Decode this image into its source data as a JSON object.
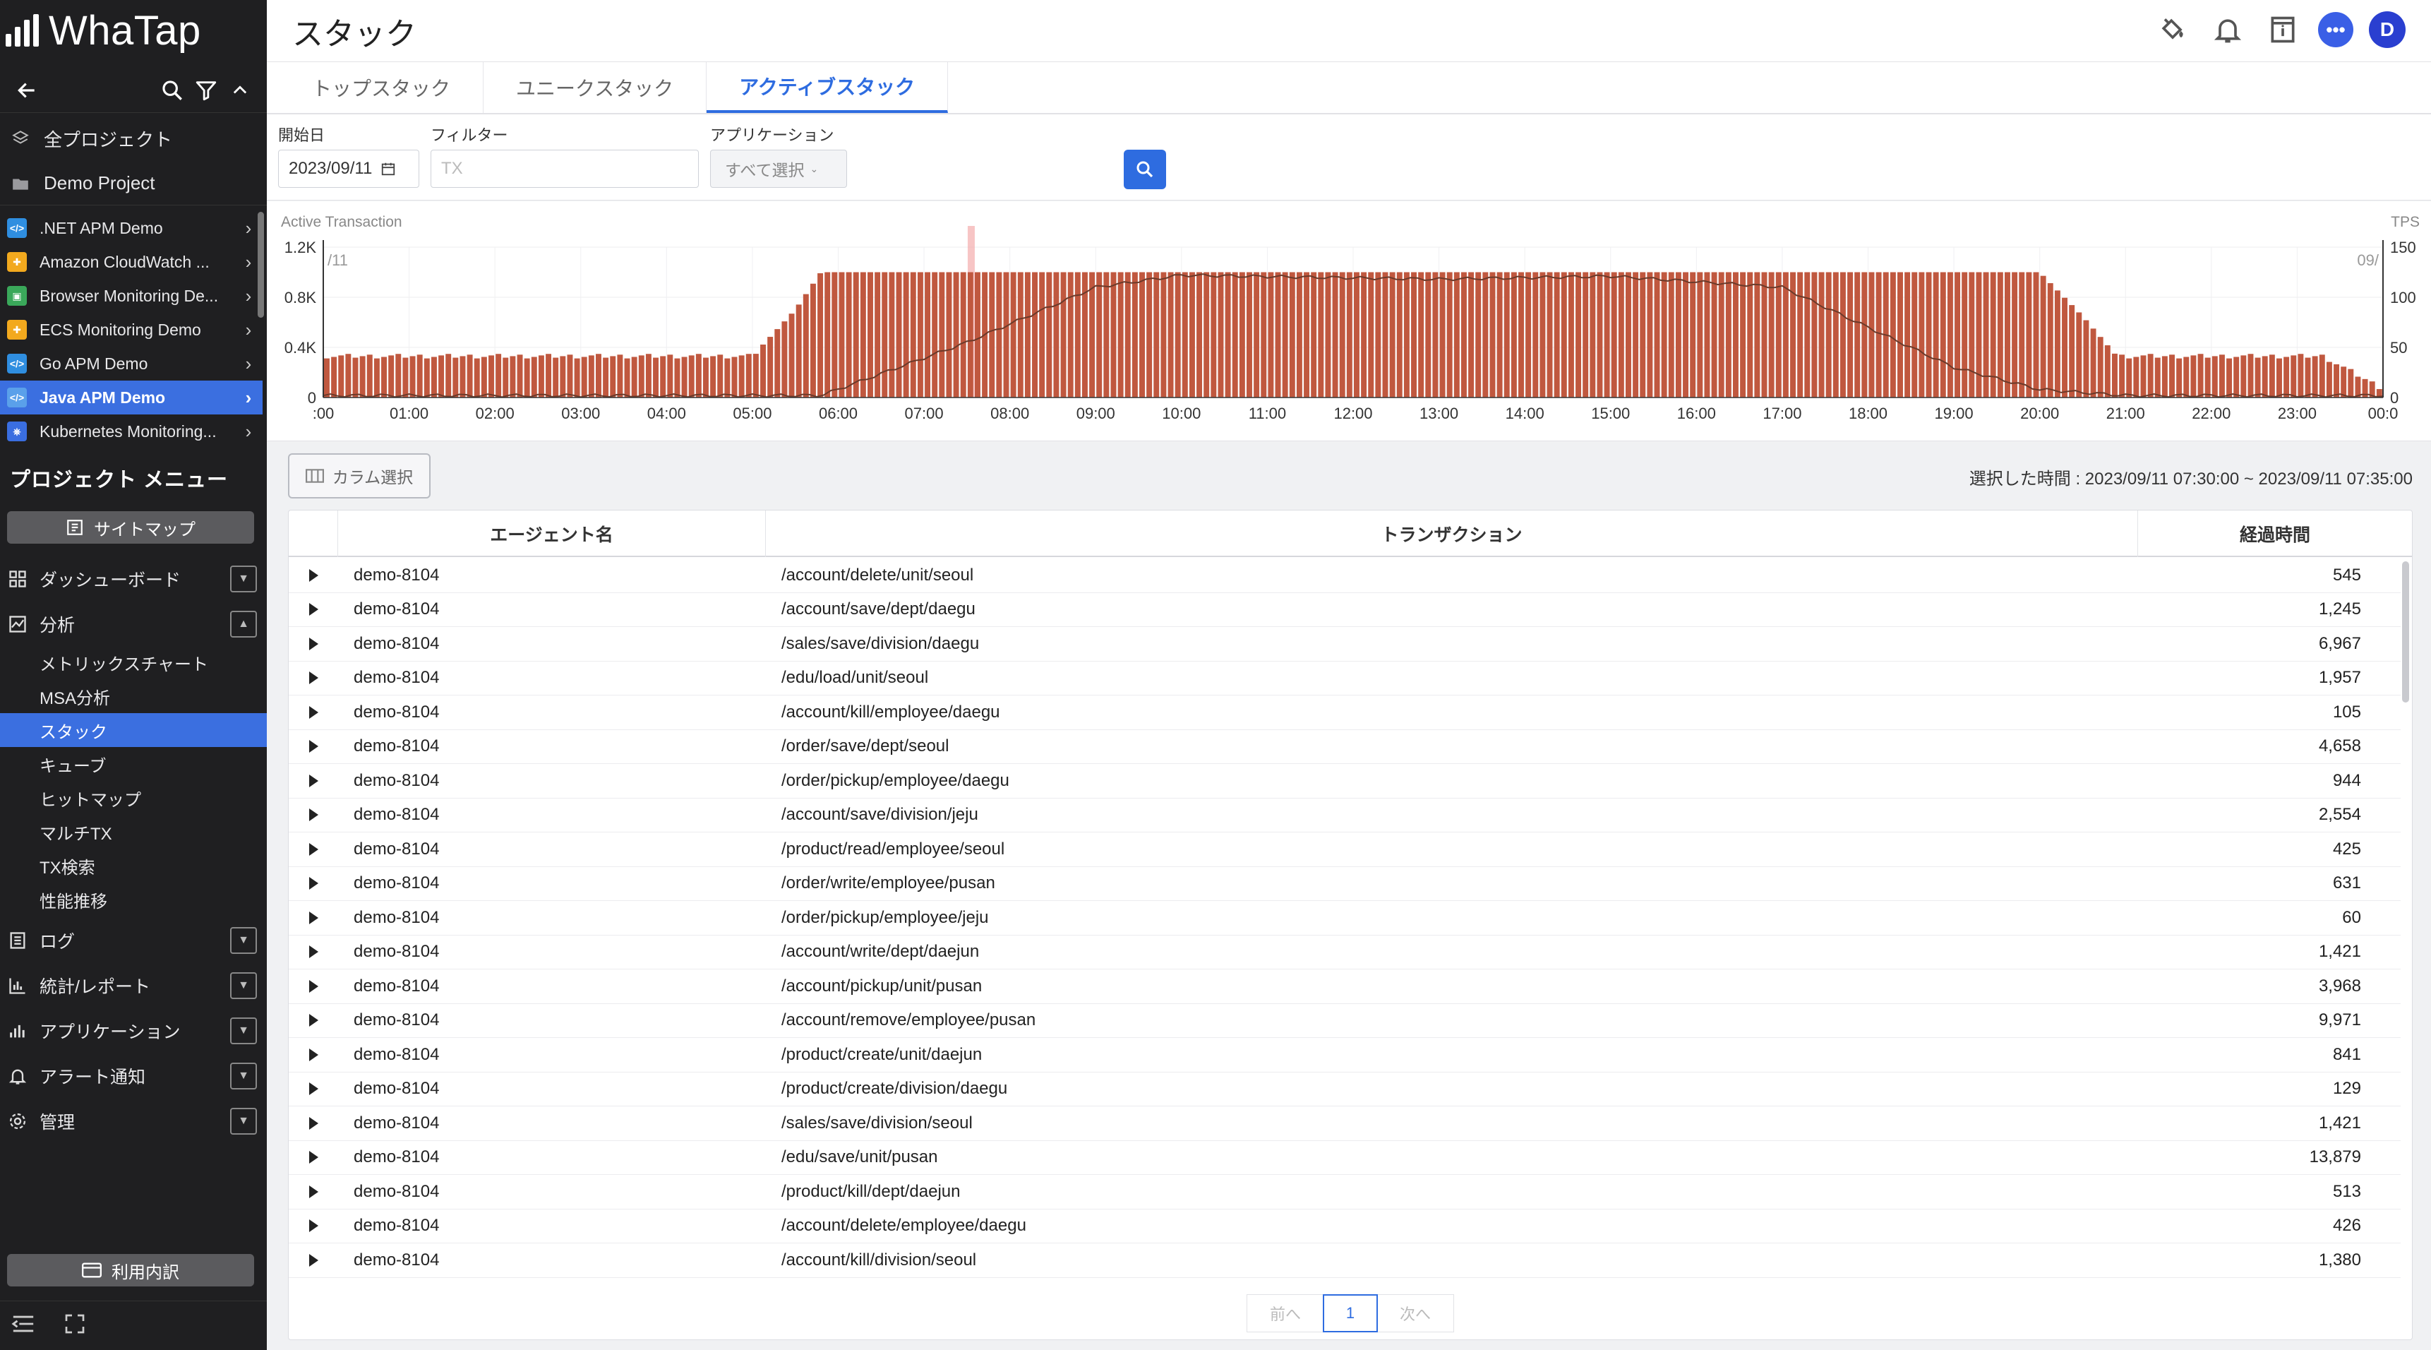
{
  "sidebar": {
    "logo_text": "WhaTap",
    "all_projects": "全プロジェクト",
    "demo_project": "Demo Project",
    "projects": [
      {
        "label": ".NET APM Demo",
        "color": "#2f8ee0",
        "icon": "code-icon"
      },
      {
        "label": "Amazon CloudWatch ...",
        "color": "#f2a91e",
        "icon": "puzzle-icon"
      },
      {
        "label": "Browser Monitoring De...",
        "color": "#3aa85a",
        "icon": "browser-icon"
      },
      {
        "label": "ECS Monitoring Demo",
        "color": "#f2a91e",
        "icon": "puzzle-icon"
      },
      {
        "label": "Go APM Demo",
        "color": "#2f8ee0",
        "icon": "code-icon"
      },
      {
        "label": "Java APM Demo",
        "color": "#2f8ee0",
        "icon": "code-icon"
      },
      {
        "label": "Kubernetes Monitoring...",
        "color": "#3a6ee0",
        "icon": "kubernetes-icon"
      }
    ],
    "menu_title": "プロジェクト メニュー",
    "sitemap_label": "サイトマップ",
    "menu": {
      "dashboard": "ダッシューボード",
      "analysis": "分析",
      "log": "ログ",
      "stats": "統計/レポート",
      "application": "アプリケーション",
      "alert": "アラート通知",
      "admin": "管理"
    },
    "analysis_sub": [
      "メトリックスチャート",
      "MSA分析",
      "スタック",
      "キューブ",
      "ヒットマップ",
      "マルチTX",
      "TX検索",
      "性能推移"
    ],
    "usage_label": "利用内訳"
  },
  "header": {
    "title": "スタック"
  },
  "tabs": [
    "トップスタック",
    "ユニークスタック",
    "アクティブスタック"
  ],
  "filters": {
    "date_label": "開始日",
    "date_value": "2023/09/11",
    "filter_label": "フィルター",
    "filter_placeholder": "TX",
    "app_label": "アプリケーション",
    "app_value": "すべて選択"
  },
  "chart_data": {
    "type": "bar",
    "title": "Active Transaction",
    "y_left_label": "",
    "y_right_label": "TPS",
    "y_left_ticks": [
      "1.2K",
      "0.8K",
      "0.4K",
      "0"
    ],
    "y_right_ticks": [
      "150",
      "100",
      "50",
      "0"
    ],
    "ylim_left": [
      0,
      1200
    ],
    "ylim_right": [
      0,
      150
    ],
    "x_ticks": [
      ":00",
      "01:00",
      "02:00",
      "03:00",
      "04:00",
      "05:00",
      "06:00",
      "07:00",
      "08:00",
      "09:00",
      "10:00",
      "11:00",
      "12:00",
      "13:00",
      "14:00",
      "15:00",
      "16:00",
      "17:00",
      "18:00",
      "19:00",
      "20:00",
      "21:00",
      "22:00",
      "23:00",
      "00:0"
    ],
    "left_date_label": "/11",
    "right_date_label": "09/",
    "bar_color": "#c0583f",
    "line_color": "#6b3a2a",
    "highlight_hour": 7.55,
    "active_transaction_profile": [
      {
        "hour": 0,
        "value": 330
      },
      {
        "hour": 5,
        "value": 330
      },
      {
        "hour": 5.5,
        "value": 700
      },
      {
        "hour": 5.8,
        "value": 1000
      },
      {
        "hour": 20,
        "value": 1000
      },
      {
        "hour": 20.5,
        "value": 650
      },
      {
        "hour": 20.9,
        "value": 330
      },
      {
        "hour": 23.3,
        "value": 330
      },
      {
        "hour": 24,
        "value": 70
      }
    ],
    "tps_profile": [
      {
        "hour": 0,
        "value": 2
      },
      {
        "hour": 5.8,
        "value": 2
      },
      {
        "hour": 7.5,
        "value": 55
      },
      {
        "hour": 9,
        "value": 110
      },
      {
        "hour": 10,
        "value": 122
      },
      {
        "hour": 13,
        "value": 118
      },
      {
        "hour": 15,
        "value": 121
      },
      {
        "hour": 17,
        "value": 110
      },
      {
        "hour": 19,
        "value": 30
      },
      {
        "hour": 20,
        "value": 8
      },
      {
        "hour": 21,
        "value": 2
      },
      {
        "hour": 24,
        "value": 2
      }
    ]
  },
  "column_select_label": "カラム選択",
  "range_text": "選択した時間 : 2023/09/11 07:30:00 ~ 2023/09/11 07:35:00",
  "table": {
    "headers": [
      "エージェント名",
      "トランザクション",
      "経過時間"
    ],
    "rows": [
      [
        "demo-8104",
        "/account/delete/unit/seoul",
        "545"
      ],
      [
        "demo-8104",
        "/account/save/dept/daegu",
        "1,245"
      ],
      [
        "demo-8104",
        "/sales/save/division/daegu",
        "6,967"
      ],
      [
        "demo-8104",
        "/edu/load/unit/seoul",
        "1,957"
      ],
      [
        "demo-8104",
        "/account/kill/employee/daegu",
        "105"
      ],
      [
        "demo-8104",
        "/order/save/dept/seoul",
        "4,658"
      ],
      [
        "demo-8104",
        "/order/pickup/employee/daegu",
        "944"
      ],
      [
        "demo-8104",
        "/account/save/division/jeju",
        "2,554"
      ],
      [
        "demo-8104",
        "/product/read/employee/seoul",
        "425"
      ],
      [
        "demo-8104",
        "/order/write/employee/pusan",
        "631"
      ],
      [
        "demo-8104",
        "/order/pickup/employee/jeju",
        "60"
      ],
      [
        "demo-8104",
        "/account/write/dept/daejun",
        "1,421"
      ],
      [
        "demo-8104",
        "/account/pickup/unit/pusan",
        "3,968"
      ],
      [
        "demo-8104",
        "/account/remove/employee/pusan",
        "9,971"
      ],
      [
        "demo-8104",
        "/product/create/unit/daejun",
        "841"
      ],
      [
        "demo-8104",
        "/product/create/division/daegu",
        "129"
      ],
      [
        "demo-8104",
        "/sales/save/division/seoul",
        "1,421"
      ],
      [
        "demo-8104",
        "/edu/save/unit/pusan",
        "13,879"
      ],
      [
        "demo-8104",
        "/product/kill/dept/daejun",
        "513"
      ],
      [
        "demo-8104",
        "/account/delete/employee/daegu",
        "426"
      ],
      [
        "demo-8104",
        "/account/kill/division/seoul",
        "1,380"
      ]
    ]
  },
  "pager": {
    "prev": "前へ",
    "current": "1",
    "next": "次へ"
  }
}
